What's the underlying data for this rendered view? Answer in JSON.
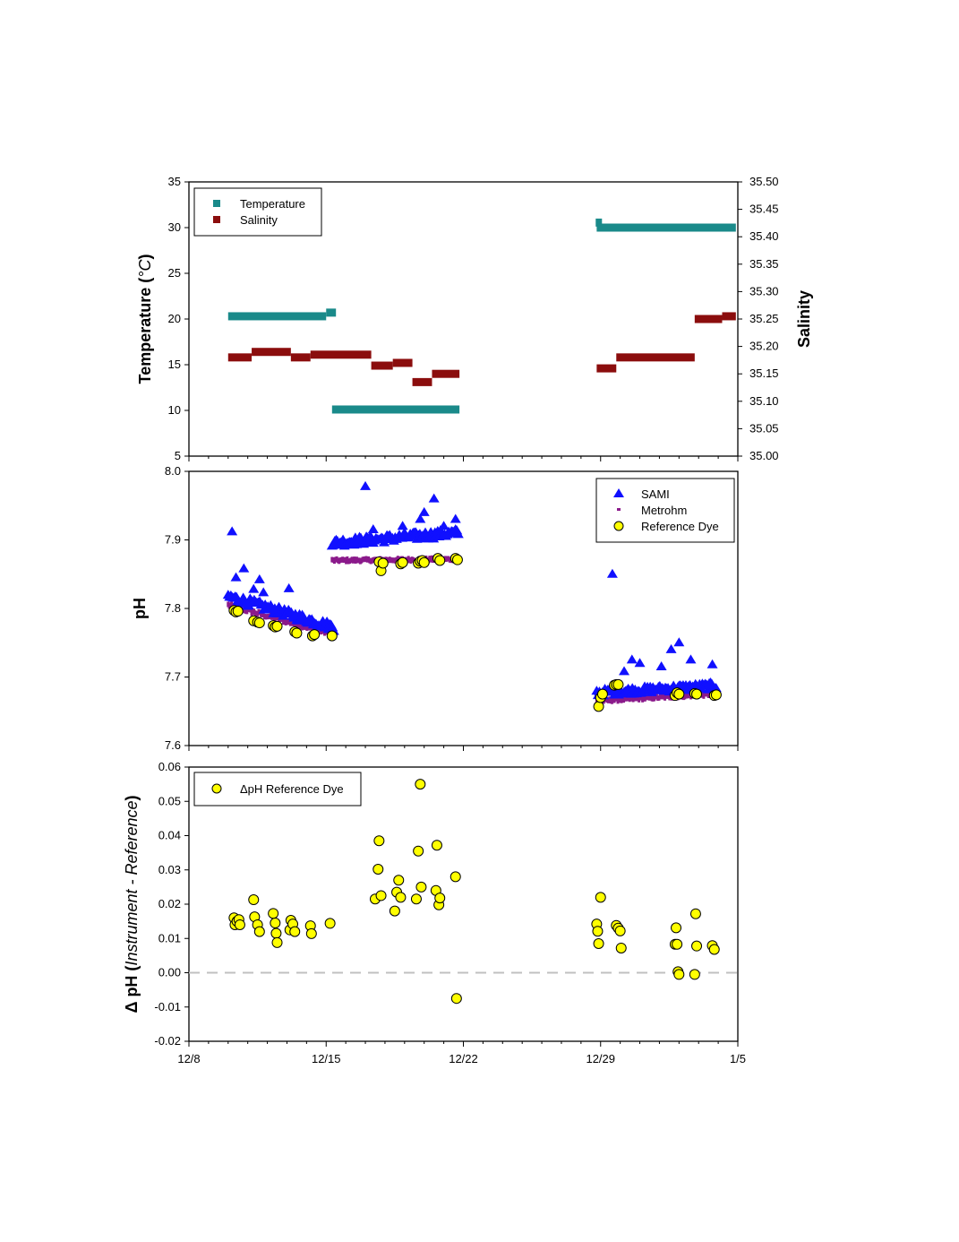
{
  "x_axis": {
    "type": "date",
    "range": [
      "2015-12-08",
      "2016-01-05"
    ],
    "tick_labels": [
      "12/8",
      "12/15",
      "12/22",
      "12/29",
      "1/5"
    ],
    "minor_ticks": "daily"
  },
  "colors": {
    "temperature": "#1a8a8a",
    "salinity": "#8b0d0d",
    "sami": "#1010ff",
    "metrohm": "#8b1a8b",
    "reference_dye": "#ffff00",
    "zero_line": "#c0c0c0"
  },
  "chart_data": [
    {
      "id": "temp_sal",
      "type": "scatter",
      "y_left": {
        "title_main": "Temperature (",
        "title_italic": "°C",
        "title_end": ")",
        "range": [
          5,
          35
        ],
        "ticks": [
          "5",
          "10",
          "15",
          "20",
          "25",
          "30",
          "35"
        ]
      },
      "y_right": {
        "title": "Salinity",
        "range": [
          35.0,
          35.5
        ],
        "ticks": [
          "35.00",
          "35.05",
          "35.10",
          "35.15",
          "35.20",
          "35.25",
          "35.30",
          "35.35",
          "35.40",
          "35.45",
          "35.50"
        ]
      },
      "legend": {
        "position": "top-left",
        "entries": [
          "Temperature",
          "Salinity"
        ]
      },
      "series": [
        {
          "name": "Temperature",
          "axis": "left",
          "marker": "square",
          "segments": [
            {
              "x": [
                "2015-12-10",
                "2015-12-15"
              ],
              "y": 20.3
            },
            {
              "x": [
                "2015-12-15",
                "2015-12-15.5"
              ],
              "y": 20.7
            },
            {
              "x": [
                "2015-12-15.3",
                "2015-12-21.8"
              ],
              "y": 10.1
            },
            {
              "x": [
                "2015-12-28.8",
                "2016-01-04.9"
              ],
              "y": 30.0
            }
          ]
        },
        {
          "name": "Salinity",
          "axis": "right",
          "marker": "square",
          "segments": [
            {
              "x": [
                "2015-12-10",
                "2015-12-11.2"
              ],
              "y": 35.18
            },
            {
              "x": [
                "2015-12-11.2",
                "2015-12-13.2"
              ],
              "y": 35.19
            },
            {
              "x": [
                "2015-12-13.2",
                "2015-12-14.2"
              ],
              "y": 35.18
            },
            {
              "x": [
                "2015-12-14.2",
                "2015-12-17.3"
              ],
              "y": 35.185
            },
            {
              "x": [
                "2015-12-17.3",
                "2015-12-18.4"
              ],
              "y": 35.165
            },
            {
              "x": [
                "2015-12-18.4",
                "2015-12-19.4"
              ],
              "y": 35.17
            },
            {
              "x": [
                "2015-12-19.4",
                "2015-12-20.4"
              ],
              "y": 35.135
            },
            {
              "x": [
                "2015-12-20.4",
                "2015-12-21.8"
              ],
              "y": 35.15
            },
            {
              "x": [
                "2015-12-28.8",
                "2015-12-29.8"
              ],
              "y": 35.16
            },
            {
              "x": [
                "2015-12-29.8",
                "2016-01-02.8"
              ],
              "y": 35.18
            },
            {
              "x": [
                "2016-01-02.8",
                "2016-01-04.2"
              ],
              "y": 35.25
            },
            {
              "x": [
                "2016-01-04.2",
                "2016-01-04.9"
              ],
              "y": 35.255
            }
          ]
        }
      ]
    },
    {
      "id": "ph",
      "type": "scatter",
      "y_left": {
        "title": "pH",
        "range": [
          7.6,
          8.0
        ],
        "ticks": [
          "7.6",
          "7.7",
          "7.8",
          "7.9",
          "8.0"
        ]
      },
      "legend": {
        "position": "top-right",
        "entries": [
          "SAMI",
          "Metrohm",
          "Reference Dye"
        ]
      },
      "series": [
        {
          "name": "SAMI",
          "marker": "triangle",
          "dense_bands": [
            {
              "x": [
                10.0,
                15.4
              ],
              "y_start": 7.815,
              "y_end": 7.77,
              "spread": 0.012
            },
            {
              "x": [
                15.3,
                21.8
              ],
              "y_start": 7.893,
              "y_end": 7.908,
              "spread": 0.012
            },
            {
              "x": [
                28.8,
                34.9
              ],
              "y_start": 7.675,
              "y_end": 7.685,
              "spread": 0.01
            }
          ],
          "outliers": [
            [
              10.2,
              7.912
            ],
            [
              10.4,
              7.845
            ],
            [
              10.8,
              7.858
            ],
            [
              11.3,
              7.828
            ],
            [
              11.6,
              7.842
            ],
            [
              11.8,
              7.823
            ],
            [
              13.1,
              7.829
            ],
            [
              17.0,
              7.978
            ],
            [
              17.4,
              7.915
            ],
            [
              18.9,
              7.92
            ],
            [
              19.8,
              7.93
            ],
            [
              20.0,
              7.94
            ],
            [
              20.5,
              7.96
            ],
            [
              21.0,
              7.92
            ],
            [
              21.6,
              7.93
            ],
            [
              29.6,
              7.85
            ],
            [
              30.2,
              7.708
            ],
            [
              30.6,
              7.725
            ],
            [
              31.0,
              7.72
            ],
            [
              32.1,
              7.715
            ],
            [
              32.6,
              7.74
            ],
            [
              33.0,
              7.75
            ],
            [
              33.6,
              7.725
            ],
            [
              34.7,
              7.718
            ]
          ]
        },
        {
          "name": "Metrohm",
          "marker": "dash",
          "dense_bands": [
            {
              "x": [
                10.0,
                15.4
              ],
              "y_start": 7.805,
              "y_end": 7.762,
              "spread": 0.006
            },
            {
              "x": [
                15.3,
                21.8
              ],
              "y_start": 7.87,
              "y_end": 7.872,
              "spread": 0.004
            },
            {
              "x": [
                28.8,
                34.9
              ],
              "y_start": 7.665,
              "y_end": 7.675,
              "spread": 0.004
            }
          ]
        },
        {
          "name": "Reference Dye",
          "marker": "circle",
          "points": [
            [
              10.3,
              7.797
            ],
            [
              10.4,
              7.795
            ],
            [
              10.5,
              7.796
            ],
            [
              11.3,
              7.782
            ],
            [
              11.5,
              7.78
            ],
            [
              11.6,
              7.779
            ],
            [
              12.3,
              7.775
            ],
            [
              12.4,
              7.773
            ],
            [
              12.5,
              7.774
            ],
            [
              13.4,
              7.766
            ],
            [
              13.5,
              7.764
            ],
            [
              14.3,
              7.76
            ],
            [
              14.4,
              7.762
            ],
            [
              15.3,
              7.76
            ],
            [
              17.7,
              7.868
            ],
            [
              17.8,
              7.855
            ],
            [
              17.9,
              7.866
            ],
            [
              18.8,
              7.865
            ],
            [
              18.9,
              7.867
            ],
            [
              19.7,
              7.866
            ],
            [
              19.8,
              7.869
            ],
            [
              19.9,
              7.87
            ],
            [
              20.0,
              7.867
            ],
            [
              20.7,
              7.873
            ],
            [
              20.8,
              7.87
            ],
            [
              21.6,
              7.873
            ],
            [
              21.7,
              7.871
            ],
            [
              28.9,
              7.657
            ],
            [
              29.0,
              7.67
            ],
            [
              29.1,
              7.675
            ],
            [
              29.7,
              7.688
            ],
            [
              29.8,
              7.689
            ],
            [
              29.9,
              7.689
            ],
            [
              32.8,
              7.673
            ],
            [
              32.9,
              7.677
            ],
            [
              33.0,
              7.675
            ],
            [
              33.8,
              7.676
            ],
            [
              33.9,
              7.675
            ],
            [
              34.8,
              7.673
            ],
            [
              34.9,
              7.674
            ]
          ]
        }
      ]
    },
    {
      "id": "delta_ph",
      "type": "scatter",
      "y_left": {
        "title_main": "Δ pH (",
        "title_italic": "Instrument - Reference",
        "title_end": ")",
        "range": [
          -0.02,
          0.06
        ],
        "ticks": [
          "-0.02",
          "-0.01",
          "0.00",
          "0.01",
          "0.02",
          "0.03",
          "0.04",
          "0.05",
          "0.06"
        ]
      },
      "legend": {
        "position": "top-left",
        "entries": [
          "ΔpH Reference Dye"
        ]
      },
      "reference_line": {
        "y": 0.0,
        "style": "dashed"
      },
      "series": [
        {
          "name": "ΔpH Reference Dye",
          "marker": "circle",
          "points": [
            [
              10.3,
              0.016
            ],
            [
              10.35,
              0.014
            ],
            [
              10.45,
              0.015
            ],
            [
              10.55,
              0.0155
            ],
            [
              10.6,
              0.014
            ],
            [
              11.3,
              0.0213
            ],
            [
              11.35,
              0.0163
            ],
            [
              11.5,
              0.014
            ],
            [
              11.6,
              0.012
            ],
            [
              12.3,
              0.0173
            ],
            [
              12.4,
              0.0145
            ],
            [
              12.45,
              0.0115
            ],
            [
              12.5,
              0.0088
            ],
            [
              13.15,
              0.0125
            ],
            [
              13.2,
              0.0153
            ],
            [
              13.3,
              0.0142
            ],
            [
              13.4,
              0.012
            ],
            [
              14.2,
              0.0137
            ],
            [
              14.25,
              0.0114
            ],
            [
              15.2,
              0.0144
            ],
            [
              17.5,
              0.0215
            ],
            [
              17.65,
              0.0302
            ],
            [
              17.7,
              0.0385
            ],
            [
              17.8,
              0.0225
            ],
            [
              18.5,
              0.018
            ],
            [
              18.6,
              0.0235
            ],
            [
              18.7,
              0.027
            ],
            [
              18.8,
              0.022
            ],
            [
              19.6,
              0.0215
            ],
            [
              19.7,
              0.0355
            ],
            [
              19.8,
              0.055
            ],
            [
              19.85,
              0.025
            ],
            [
              20.6,
              0.024
            ],
            [
              20.65,
              0.0372
            ],
            [
              20.75,
              0.0198
            ],
            [
              20.8,
              0.0218
            ],
            [
              21.6,
              0.028
            ],
            [
              21.65,
              -0.0075
            ],
            [
              28.8,
              0.0142
            ],
            [
              28.85,
              0.0121
            ],
            [
              28.9,
              0.0085
            ],
            [
              29.0,
              0.022
            ],
            [
              29.8,
              0.0138
            ],
            [
              29.9,
              0.013
            ],
            [
              30.0,
              0.0122
            ],
            [
              30.05,
              0.0072
            ],
            [
              32.8,
              0.0083
            ],
            [
              32.85,
              0.0131
            ],
            [
              32.9,
              0.0083
            ],
            [
              32.95,
              0.0003
            ],
            [
              33.0,
              -0.0005
            ],
            [
              33.8,
              -0.0005
            ],
            [
              33.85,
              0.0172
            ],
            [
              33.9,
              0.0078
            ],
            [
              34.7,
              0.0079
            ],
            [
              34.8,
              0.0068
            ]
          ]
        }
      ]
    }
  ]
}
